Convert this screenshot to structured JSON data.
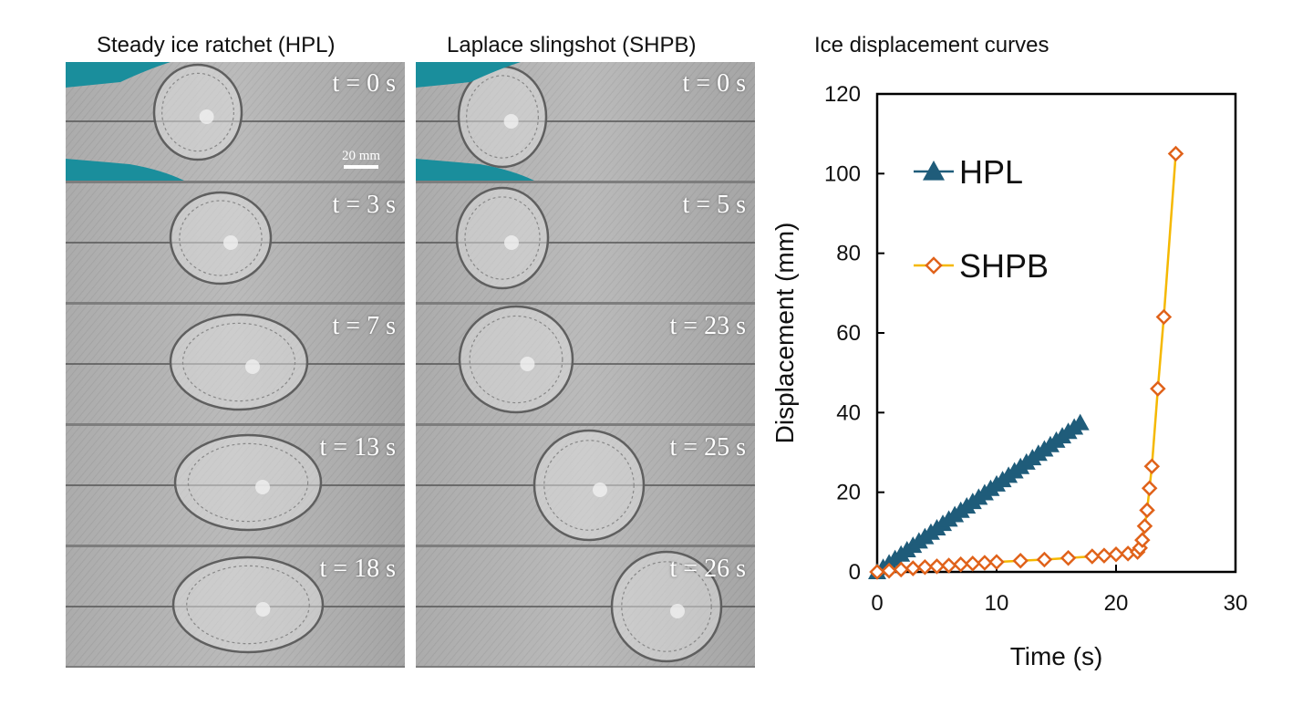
{
  "panels": {
    "left_title": "Steady ice ratchet (HPL)",
    "middle_title": "Laplace slingshot (SHPB)",
    "right_title": "Ice displacement curves"
  },
  "scale_bar_label": "20 mm",
  "hpl_frames": [
    {
      "time": "t = 0 s"
    },
    {
      "time": "t = 3 s"
    },
    {
      "time": "t = 7 s"
    },
    {
      "time": "t = 13 s"
    },
    {
      "time": "t = 18 s"
    }
  ],
  "shpb_frames": [
    {
      "time": "t = 0 s"
    },
    {
      "time": "t = 5 s"
    },
    {
      "time": "t = 23 s"
    },
    {
      "time": "t = 25 s"
    },
    {
      "time": "t = 26 s"
    }
  ],
  "chart_data": {
    "type": "line",
    "title": "Ice displacement curves",
    "xlabel": "Time (s)",
    "ylabel": "Displacement (mm)",
    "xlim": [
      0,
      30
    ],
    "ylim": [
      0,
      120
    ],
    "xticks": [
      0,
      10,
      20,
      30
    ],
    "yticks": [
      0,
      20,
      40,
      60,
      80,
      100,
      120
    ],
    "grid": false,
    "legend_position": "top-left",
    "series": [
      {
        "name": "HPL",
        "color": "#1f5c7a",
        "marker": "triangle",
        "x": [
          0,
          0.5,
          1,
          1.5,
          2,
          2.5,
          3,
          3.5,
          4,
          4.5,
          5,
          5.5,
          6,
          6.5,
          7,
          7.5,
          8,
          8.5,
          9,
          9.5,
          10,
          10.5,
          11,
          11.5,
          12,
          12.5,
          13,
          13.5,
          14,
          14.5,
          15,
          15.5,
          16,
          16.5,
          17
        ],
        "y": [
          0,
          1.1,
          2.2,
          3.3,
          4.4,
          5.5,
          6.6,
          7.7,
          8.8,
          9.9,
          11.0,
          12.1,
          13.2,
          14.3,
          15.4,
          16.5,
          17.6,
          18.7,
          19.8,
          20.9,
          22.0,
          23.1,
          24.2,
          25.3,
          26.4,
          27.5,
          28.6,
          29.7,
          30.8,
          31.9,
          33.0,
          34.1,
          35.2,
          36.3,
          37.4
        ]
      },
      {
        "name": "SHPB",
        "color": "#f5b800",
        "marker_edge": "#e0621a",
        "marker": "diamond",
        "x": [
          0,
          1,
          2,
          3,
          4,
          5,
          6,
          7,
          8,
          9,
          10,
          12,
          14,
          16,
          18,
          19,
          20,
          21,
          21.8,
          22,
          22.2,
          22.4,
          22.6,
          22.8,
          23,
          23.5,
          24,
          25
        ],
        "y": [
          0,
          0.3,
          0.6,
          0.9,
          1.2,
          1.4,
          1.6,
          1.9,
          2.1,
          2.3,
          2.5,
          2.8,
          3.1,
          3.5,
          3.9,
          4.1,
          4.4,
          4.6,
          5.0,
          6.0,
          8.0,
          11.5,
          15.5,
          21.0,
          26.5,
          46.0,
          64.0,
          105.0
        ]
      }
    ]
  }
}
